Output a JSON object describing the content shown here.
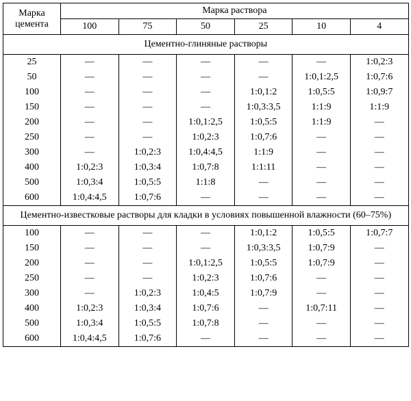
{
  "header": {
    "row_label": "Марка цемента",
    "group_label": "Марка раствора",
    "cols": [
      "100",
      "75",
      "50",
      "25",
      "10",
      "4"
    ]
  },
  "sections": [
    {
      "title": "Цементно-глиняные растворы",
      "rows": [
        {
          "label": "25",
          "v": [
            "—",
            "—",
            "—",
            "—",
            "—",
            "1:0,2:3"
          ]
        },
        {
          "label": "50",
          "v": [
            "—",
            "—",
            "—",
            "—",
            "1:0,1:2,5",
            "1:0,7:6"
          ]
        },
        {
          "label": "100",
          "v": [
            "—",
            "—",
            "—",
            "1:0,1:2",
            "1:0,5:5",
            "1:0,9:7"
          ]
        },
        {
          "label": "150",
          "v": [
            "—",
            "—",
            "—",
            "1:0,3:3,5",
            "1:1:9",
            "1:1:9"
          ]
        },
        {
          "label": "200",
          "v": [
            "—",
            "—",
            "1:0,1:2,5",
            "1:0,5:5",
            "1:1:9",
            "—"
          ]
        },
        {
          "label": "250",
          "v": [
            "—",
            "—",
            "1:0,2:3",
            "1:0,7:6",
            "—",
            "—"
          ]
        },
        {
          "label": "300",
          "v": [
            "—",
            "1:0,2:3",
            "1:0,4:4,5",
            "1:1:9",
            "—",
            "—"
          ]
        },
        {
          "label": "400",
          "v": [
            "1:0,2:3",
            "1:0,3:4",
            "1:0,7:8",
            "1:1:11",
            "—",
            "—"
          ]
        },
        {
          "label": "500",
          "v": [
            "1:0,3:4",
            "1:0,5:5",
            "1:1:8",
            "—",
            "—",
            "—"
          ]
        },
        {
          "label": "600",
          "v": [
            "1:0,4:4,5",
            "1:0,7:6",
            "—",
            "—",
            "—",
            "—"
          ]
        }
      ]
    },
    {
      "title": "Цементно-известковые растворы для кладки в условиях повышенной влажности (60–75%)",
      "rows": [
        {
          "label": "100",
          "v": [
            "—",
            "—",
            "—",
            "1:0,1:2",
            "1:0,5:5",
            "1:0,7:7"
          ]
        },
        {
          "label": "150",
          "v": [
            "—",
            "—",
            "—",
            "1:0,3:3,5",
            "1:0,7:9",
            "—"
          ]
        },
        {
          "label": "200",
          "v": [
            "—",
            "—",
            "1:0,1:2,5",
            "1:0,5:5",
            "1:0,7:9",
            "—"
          ]
        },
        {
          "label": "250",
          "v": [
            "—",
            "—",
            "1:0,2:3",
            "1:0,7:6",
            "—",
            "—"
          ]
        },
        {
          "label": "300",
          "v": [
            "—",
            "1:0,2:3",
            "1:0,4:5",
            "1:0,7:9",
            "—",
            "—"
          ]
        },
        {
          "label": "400",
          "v": [
            "1:0,2:3",
            "1:0,3:4",
            "1:0,7:6",
            "—",
            "1:0,7:11",
            "—"
          ]
        },
        {
          "label": "500",
          "v": [
            "1:0,3:4",
            "1:0,5:5",
            "1:0,7:8",
            "—",
            "—",
            "—"
          ]
        },
        {
          "label": "600",
          "v": [
            "1:0,4:4,5",
            "1:0,7:6",
            "—",
            "—",
            "—",
            "—"
          ]
        }
      ]
    }
  ],
  "style": {
    "font_family": "Times New Roman",
    "font_size_pt": 11,
    "border_color": "#000000",
    "background_color": "#ffffff",
    "text_color": "#000000",
    "dash": "—"
  }
}
